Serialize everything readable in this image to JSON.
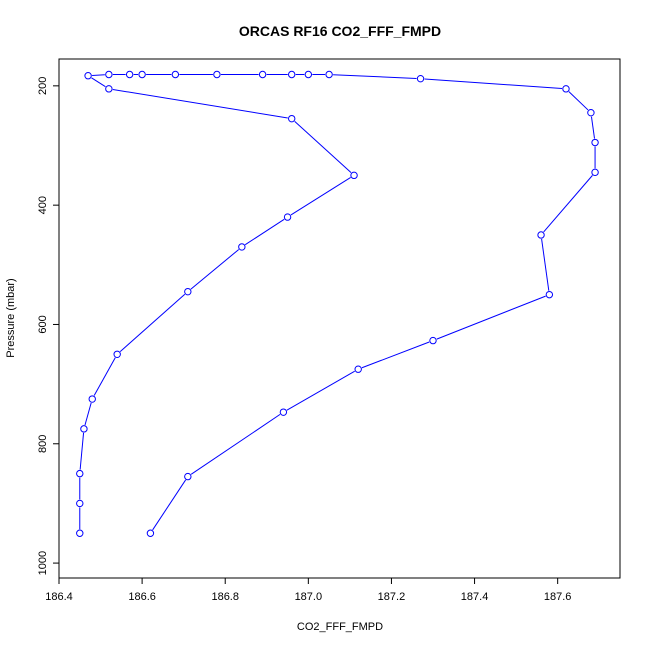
{
  "chart_data": {
    "type": "line",
    "title": "ORCAS RF16 CO2_FFF_FMPD",
    "xlabel": "CO2_FFF_FMPD",
    "ylabel": "Pressure (mbar)",
    "xlim": [
      186.4,
      187.75
    ],
    "ylim": [
      1025,
      155
    ],
    "y_reversed": true,
    "x_ticks": [
      186.4,
      186.6,
      186.8,
      187.0,
      187.2,
      187.4,
      187.6
    ],
    "x_tick_labels": [
      "186.4",
      "186.6",
      "186.8",
      "187.0",
      "187.2",
      "187.4",
      "187.6"
    ],
    "y_ticks": [
      200,
      400,
      600,
      800,
      1000
    ],
    "y_tick_labels": [
      "200",
      "400",
      "600",
      "800",
      "1000"
    ],
    "grid": false,
    "color": "#0000ff",
    "series": [
      {
        "points": [
          [
            186.62,
            950
          ],
          [
            186.71,
            855
          ],
          [
            186.94,
            747
          ],
          [
            187.12,
            675
          ],
          [
            187.3,
            627
          ],
          [
            187.58,
            550
          ],
          [
            187.56,
            450
          ],
          [
            187.69,
            345
          ],
          [
            187.69,
            295
          ],
          [
            187.68,
            245
          ],
          [
            187.62,
            205
          ],
          [
            187.27,
            188
          ],
          [
            187.05,
            181
          ],
          [
            187.0,
            181
          ],
          [
            186.96,
            181
          ],
          [
            186.89,
            181
          ],
          [
            186.78,
            181
          ],
          [
            186.68,
            181
          ],
          [
            186.6,
            181
          ],
          [
            186.57,
            181
          ],
          [
            186.52,
            181
          ],
          [
            186.47,
            183
          ],
          [
            186.52,
            205
          ],
          [
            186.96,
            255
          ],
          [
            187.11,
            350
          ],
          [
            186.95,
            420
          ],
          [
            186.84,
            470
          ],
          [
            186.71,
            545
          ],
          [
            186.54,
            650
          ],
          [
            186.48,
            725
          ],
          [
            186.46,
            775
          ],
          [
            186.45,
            850
          ],
          [
            186.45,
            900
          ],
          [
            186.45,
            950
          ]
        ]
      }
    ]
  }
}
